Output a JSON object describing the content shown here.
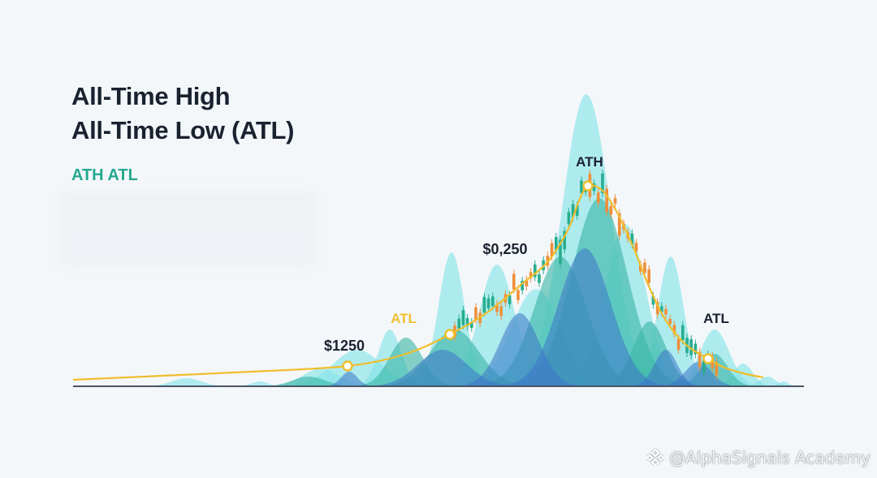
{
  "title_lines": [
    "All-Time High",
    "All-Time Low (ATL)"
  ],
  "subtitle": "ATH ATL",
  "watermark": "@AlphaSignals Academy",
  "colors": {
    "background": "#f4f7fa",
    "title": "#1a2230",
    "subtitle": "#23a88e",
    "trend_line": "#f0be2d",
    "candle_up": "#27ae8f",
    "candle_down": "#ef8f3a",
    "wave_light": "#7ee3e6",
    "wave_teal": "#3bb7a7",
    "wave_blue": "#3d74c8",
    "baseline": "#4a5566"
  },
  "chart_data": {
    "type": "line",
    "xlabel": "",
    "ylabel": "",
    "grid": false,
    "trend_points": [
      {
        "label": "$1250",
        "color": "#1a2230"
      },
      {
        "label": "ATL",
        "color": "#f0be2d"
      },
      {
        "label": "$0,250",
        "color": "#1a2230"
      },
      {
        "label": "ATH",
        "color": "#1a2230"
      },
      {
        "label": "ATL",
        "color": "#1a2230"
      }
    ]
  }
}
